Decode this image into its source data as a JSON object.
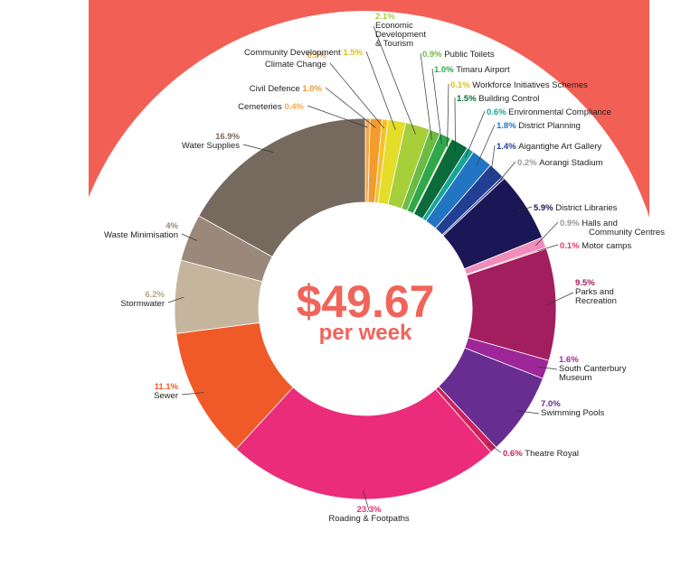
{
  "center": {
    "amount": "$49.67",
    "sub": "per week"
  },
  "colors": {
    "backdrop": "#f25f55",
    "center_text": "#f0645a",
    "leader": "#333333"
  },
  "chart_data": {
    "type": "donut",
    "title": "",
    "slices": [
      {
        "name": "Cemeteries",
        "pct_label": "0.4%",
        "value": 0.4,
        "color": "#f7a844"
      },
      {
        "name": "Civil Defence",
        "pct_label": "1.0%",
        "value": 1.0,
        "color": "#f59a2d"
      },
      {
        "name": "Climate Change",
        "pct_label": "0.5%",
        "value": 0.5,
        "color": "#f6c129"
      },
      {
        "name": "Community Development",
        "pct_label": "1.5%",
        "value": 1.5,
        "color": "#e4dd2a"
      },
      {
        "name": "Economic Development & Tourism",
        "pct_label": "2.1%",
        "value": 2.1,
        "color": "#a7cf3a"
      },
      {
        "name": "Public Toilets",
        "pct_label": "0.9%",
        "value": 0.9,
        "color": "#6dbb45"
      },
      {
        "name": "Timaru Airport",
        "pct_label": "1.0%",
        "value": 1.0,
        "color": "#2ea84b"
      },
      {
        "name": "Workforce Initiatives Schemes",
        "pct_label": "0.1%",
        "value": 0.1,
        "color": "#f0de2a"
      },
      {
        "name": "Building Control",
        "pct_label": "1.5%",
        "value": 1.5,
        "color": "#0b6b3a"
      },
      {
        "name": "Environmental Compliance",
        "pct_label": "0.6%",
        "value": 0.6,
        "color": "#16a598"
      },
      {
        "name": "District Planning",
        "pct_label": "1.8%",
        "value": 1.8,
        "color": "#2275c2"
      },
      {
        "name": "Aigantighe Art Gallery",
        "pct_label": "1.4%",
        "value": 1.4,
        "color": "#233f93"
      },
      {
        "name": "Aorangi Stadium",
        "pct_label": "0.2%",
        "value": 0.2,
        "color": "#3b4aa1"
      },
      {
        "name": "District Libraries",
        "pct_label": "5.9%",
        "value": 5.9,
        "color": "#1b1655"
      },
      {
        "name": "Halls and Community Centres",
        "pct_label": "0.9%",
        "value": 0.9,
        "color": "#f08dbb"
      },
      {
        "name": "Motor camps",
        "pct_label": "0.1%",
        "value": 0.1,
        "color": "#e23a5f"
      },
      {
        "name": "Parks and Recreation",
        "pct_label": "9.5%",
        "value": 9.5,
        "color": "#a21e5f"
      },
      {
        "name": "South Canterbury Museum",
        "pct_label": "1.6%",
        "value": 1.6,
        "color": "#9d2698"
      },
      {
        "name": "Swimming Pools",
        "pct_label": "7.0%",
        "value": 7.0,
        "color": "#672d90"
      },
      {
        "name": "Theatre Royal",
        "pct_label": "0.6%",
        "value": 0.6,
        "color": "#d0215c"
      },
      {
        "name": "Roading & Footpaths",
        "pct_label": "23.3%",
        "value": 23.3,
        "color": "#ea2c7a"
      },
      {
        "name": "Sewer",
        "pct_label": "11.1%",
        "value": 11.1,
        "color": "#f05a28"
      },
      {
        "name": "Stormwater",
        "pct_label": "6.2%",
        "value": 6.2,
        "color": "#c5b59c"
      },
      {
        "name": "Waste Minimisation",
        "pct_label": "4%",
        "value": 4.0,
        "color": "#9a887a"
      },
      {
        "name": "Water Supplies",
        "pct_label": "16.9%",
        "value": 16.9,
        "color": "#766a5e"
      }
    ]
  }
}
